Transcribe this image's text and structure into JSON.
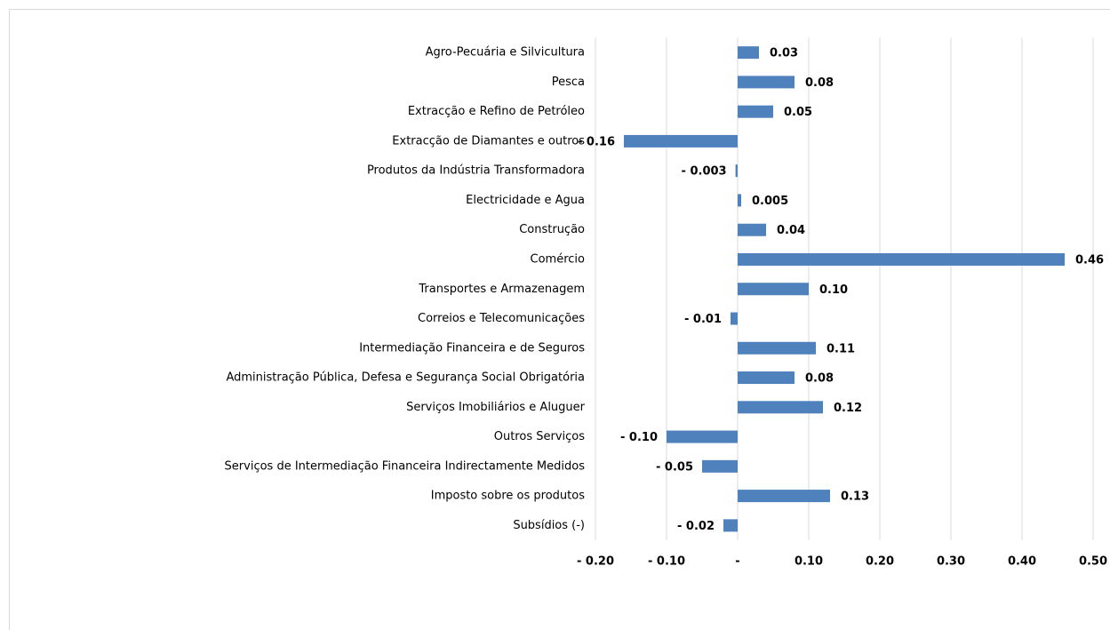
{
  "chart_data": {
    "type": "bar",
    "orientation": "horizontal",
    "categories": [
      "Agro-Pecuária e Silvicultura",
      "Pesca",
      "Extracção e Refino de Petróleo",
      "Extracção de Diamantes e outros",
      "Produtos da Indústria Transformadora",
      "Electricidade e Agua",
      "Construção",
      "Comércio",
      "Transportes e Armazenagem",
      "Correios e Telecomunicações",
      "Intermediação Financeira e de Seguros",
      "Administração Pública, Defesa e Segurança Social Obrigatória",
      "Serviços Imobiliários e Aluguer",
      "Outros Serviços",
      "Serviços de Intermediação Financeira Indirectamente Medidos",
      "Imposto sobre os produtos",
      "Subsídios (-)"
    ],
    "values": [
      0.03,
      0.08,
      0.05,
      -0.16,
      -0.003,
      0.005,
      0.04,
      0.46,
      0.1,
      -0.01,
      0.11,
      0.08,
      0.12,
      -0.1,
      -0.05,
      0.13,
      -0.02
    ],
    "value_labels": [
      "0.03",
      "0.08",
      "0.05",
      "- 0.16",
      "- 0.003",
      "0.005",
      "0.04",
      "0.46",
      "0.10",
      "- 0.01",
      "0.11",
      "0.08",
      "0.12",
      "- 0.10",
      "- 0.05",
      "0.13",
      "- 0.02"
    ],
    "color": "#4f81bd",
    "xlim": [
      -0.2,
      0.5
    ],
    "xticks": [
      {
        "value": -0.2,
        "label": "- 0.20"
      },
      {
        "value": -0.1,
        "label": "- 0.10"
      },
      {
        "value": 0,
        "label": "-"
      },
      {
        "value": 0.1,
        "label": "0.10"
      },
      {
        "value": 0.2,
        "label": "0.20"
      },
      {
        "value": 0.3,
        "label": "0.30"
      },
      {
        "value": 0.4,
        "label": "0.40"
      },
      {
        "value": 0.5,
        "label": "0.50"
      }
    ],
    "grid": true
  }
}
